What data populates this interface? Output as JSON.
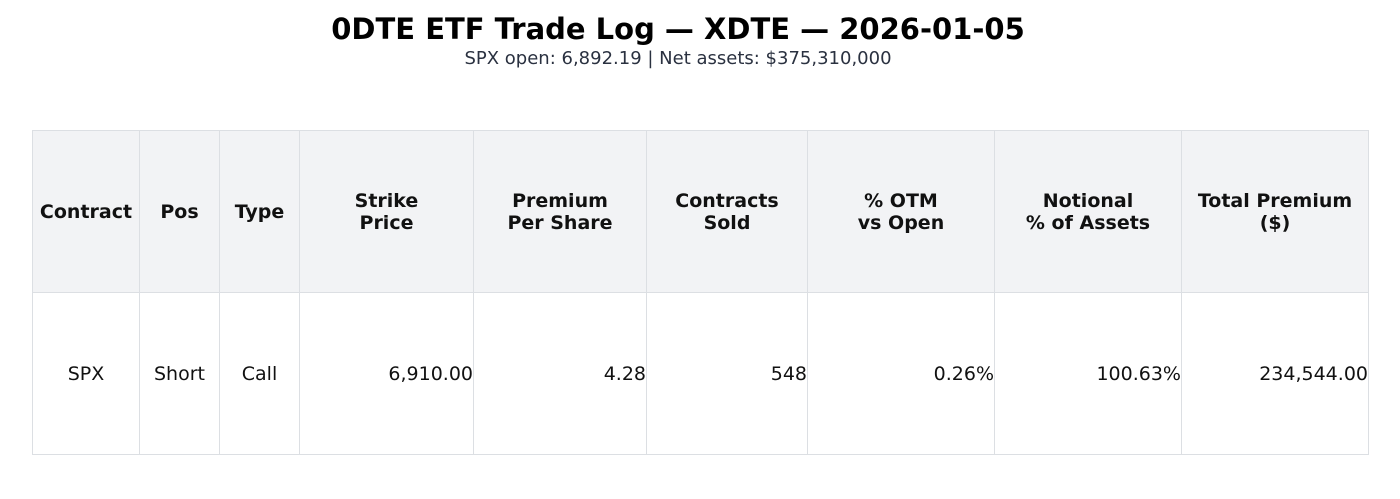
{
  "title": "0DTE ETF Trade Log — XDTE — 2026-01-05",
  "subtitle": "SPX open: 6,892.19 | Net assets: $375,310,000",
  "chart_data": {
    "type": "table",
    "columns": [
      "Contract",
      "Pos",
      "Type",
      "Strike\nPrice",
      "Premium\nPer Share",
      "Contracts\nSold",
      "% OTM\nvs Open",
      "Notional\n% of Assets",
      "Total Premium\n($)"
    ],
    "rows": [
      [
        "SPX",
        "Short",
        "Call",
        "6,910.00",
        "4.28",
        "548",
        "0.26%",
        "100.63%",
        "234,544.00"
      ]
    ]
  }
}
